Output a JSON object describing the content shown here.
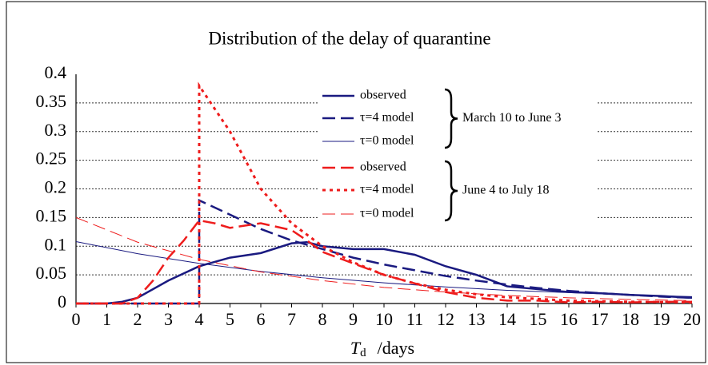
{
  "chart_data": {
    "type": "line",
    "title": "Distribution of the delay of quarantine",
    "x_label": {
      "symbol": "T",
      "subscript": "d",
      "unit": "/days"
    },
    "xlim": [
      0,
      20
    ],
    "xticks": [
      0,
      1,
      2,
      3,
      4,
      5,
      6,
      7,
      8,
      9,
      10,
      11,
      12,
      13,
      14,
      15,
      16,
      17,
      18,
      19,
      20
    ],
    "ylim": [
      0,
      0.4
    ],
    "yticks": [
      0,
      0.05,
      0.1,
      0.15,
      0.2,
      0.25,
      0.3,
      0.35,
      0.4
    ],
    "grid": true,
    "legend_groups": [
      "March 10 to June 3",
      "June 4 to July 18"
    ],
    "series": [
      {
        "name": "observed",
        "color": "#1a1a80",
        "style": "solid",
        "width": 2.5,
        "x": [
          0,
          1,
          1.5,
          2,
          3,
          4,
          5,
          6,
          7,
          7.5,
          8,
          9,
          10,
          11,
          12,
          13,
          14,
          15,
          16,
          17,
          18,
          19,
          20
        ],
        "values": [
          0,
          0,
          0.003,
          0.01,
          0.04,
          0.065,
          0.08,
          0.088,
          0.105,
          0.107,
          0.1,
          0.095,
          0.095,
          0.085,
          0.065,
          0.05,
          0.03,
          0.025,
          0.02,
          0.018,
          0.015,
          0.013,
          0.01
        ]
      },
      {
        "name": "τ=4 model",
        "color": "#1a1a80",
        "style": "dash",
        "width": 2.5,
        "x": [
          0,
          4,
          4,
          5,
          6,
          7,
          8,
          9,
          10,
          11,
          12,
          13,
          14,
          15,
          16,
          17,
          18,
          19,
          20
        ],
        "values": [
          0,
          0,
          0.18,
          0.155,
          0.13,
          0.11,
          0.095,
          0.08,
          0.068,
          0.058,
          0.048,
          0.04,
          0.033,
          0.027,
          0.022,
          0.018,
          0.015,
          0.012,
          0.01
        ]
      },
      {
        "name": "τ=0 model",
        "color": "#1a1a80",
        "style": "solid",
        "width": 1,
        "x": [
          0,
          2,
          4,
          6,
          8,
          10,
          12,
          14,
          16,
          18,
          20
        ],
        "values": [
          0.108,
          0.087,
          0.07,
          0.056,
          0.045,
          0.036,
          0.029,
          0.023,
          0.019,
          0.015,
          0.012
        ]
      },
      {
        "name": "observed",
        "color": "#ee1c1c",
        "style": "dash",
        "width": 2.5,
        "x": [
          0,
          1.5,
          2,
          2.5,
          3,
          3.5,
          4,
          4.5,
          5,
          6,
          7,
          7.5,
          8,
          9,
          10,
          11,
          12,
          13,
          14,
          15,
          16,
          17,
          18,
          19,
          20
        ],
        "values": [
          0,
          0,
          0.01,
          0.04,
          0.08,
          0.11,
          0.145,
          0.14,
          0.132,
          0.14,
          0.128,
          0.11,
          0.09,
          0.07,
          0.05,
          0.035,
          0.02,
          0.01,
          0.005,
          0.005,
          0.002,
          0.003,
          0.002,
          0.003,
          0.003
        ]
      },
      {
        "name": "τ=4 model",
        "color": "#ee1c1c",
        "style": "dot",
        "width": 3,
        "x": [
          0,
          4,
          4,
          5,
          6,
          7,
          8,
          9,
          10,
          11,
          12,
          13,
          14,
          15,
          16,
          18,
          20
        ],
        "values": [
          0,
          0,
          0.38,
          0.3,
          0.2,
          0.14,
          0.1,
          0.072,
          0.05,
          0.035,
          0.024,
          0.016,
          0.011,
          0.008,
          0.005,
          0.003,
          0.002
        ]
      },
      {
        "name": "τ=0 model",
        "color": "#ee1c1c",
        "style": "dash",
        "width": 1,
        "x": [
          0,
          2,
          4,
          6,
          8,
          10,
          12,
          14,
          16,
          18,
          20
        ],
        "values": [
          0.15,
          0.107,
          0.077,
          0.055,
          0.04,
          0.028,
          0.02,
          0.014,
          0.01,
          0.007,
          0.005
        ]
      }
    ]
  }
}
